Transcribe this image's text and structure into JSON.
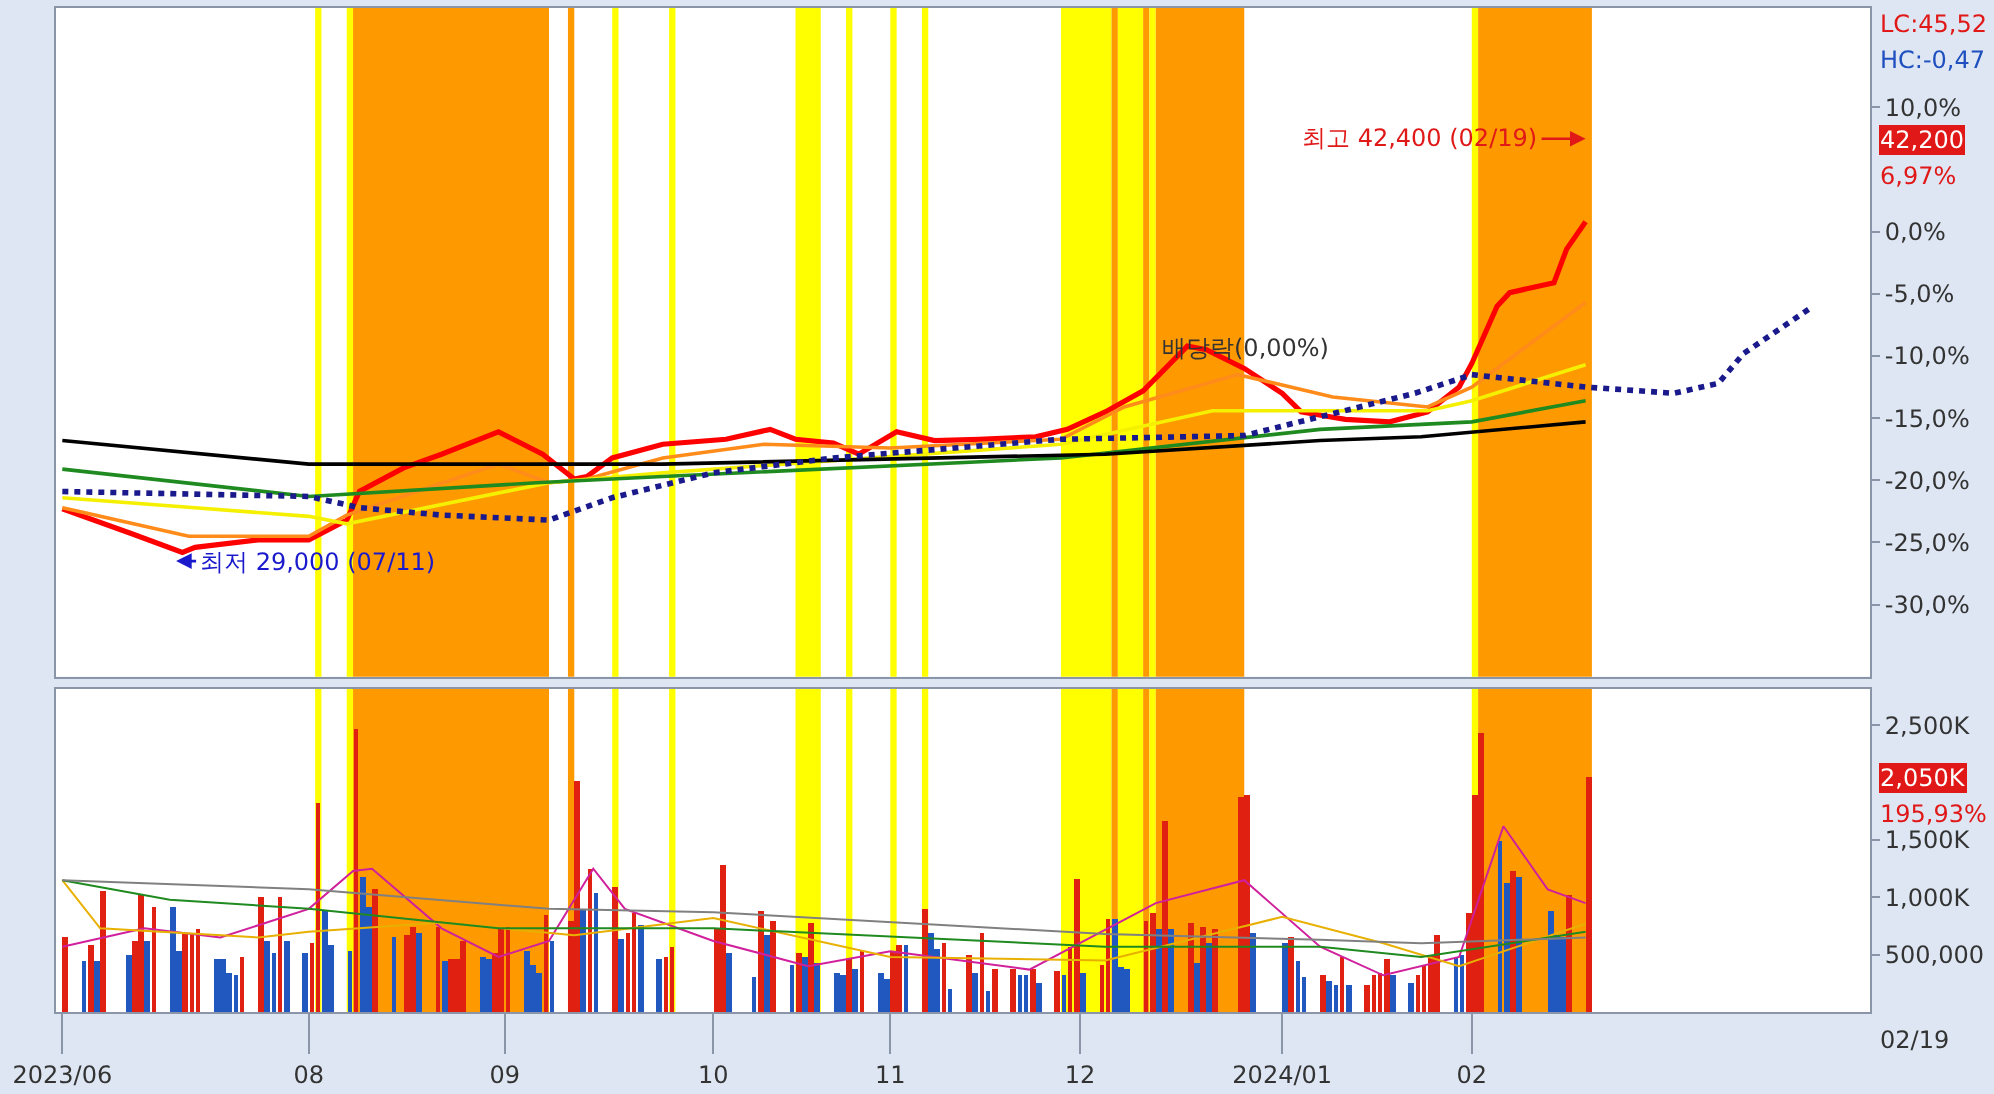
{
  "chart_data": [
    {
      "type": "line",
      "xlim": [
        "2023-06-22",
        "2024-04-04"
      ],
      "ylim": [
        -35.8,
        18.0
      ],
      "yticks": [
        {
          "value": 10,
          "label": "10,0%"
        },
        {
          "value": 0,
          "label": "0,0%"
        },
        {
          "value": -5,
          "label": "-5,0%"
        },
        {
          "value": -10,
          "label": "-10,0%"
        },
        {
          "value": -15,
          "label": "-15,0%"
        },
        {
          "value": -20,
          "label": "-20,0%"
        },
        {
          "value": -25,
          "label": "-25,0%"
        },
        {
          "value": -30,
          "label": "-30,0%"
        }
      ],
      "tick_labels": "y",
      "series": [
        {
          "color": "#ff0000",
          "x": [
            "2023-06-23",
            "2023-07-04",
            "2023-07-12",
            "2023-07-14",
            "2023-07-24",
            "2023-08-01",
            "2023-08-07",
            "2023-08-09",
            "2023-08-16",
            "2023-08-22",
            "2023-08-31",
            "2023-09-07",
            "2023-09-12",
            "2023-09-14",
            "2023-09-18",
            "2023-09-26",
            "2023-10-06",
            "2023-10-13",
            "2023-10-17",
            "2023-10-23",
            "2023-10-27",
            "2023-11-02",
            "2023-11-08",
            "2023-11-15",
            "2023-11-24",
            "2023-11-29",
            "2023-12-05",
            "2023-12-11",
            "2023-12-18",
            "2023-12-21",
            "2023-12-27",
            "2024-01-02",
            "2024-01-05",
            "2024-01-12",
            "2024-01-19",
            "2024-01-25",
            "2024-01-30",
            "2024-02-01",
            "2024-02-05",
            "2024-02-07",
            "2024-02-14",
            "2024-02-16",
            "2024-02-19"
          ],
          "values": [
            -22.3,
            -24.3,
            -25.8,
            -25.4,
            -24.8,
            -24.8,
            -23.2,
            -20.9,
            -19.0,
            -17.9,
            -16.1,
            -17.9,
            -19.9,
            -19.7,
            -18.2,
            -17.1,
            -16.7,
            -15.9,
            -16.7,
            -17.0,
            -17.9,
            -16.1,
            -16.8,
            -16.7,
            -16.5,
            -15.9,
            -14.5,
            -12.8,
            -9.2,
            -9.5,
            -11.0,
            -13.0,
            -14.5,
            -15.1,
            -15.3,
            -14.5,
            -12.5,
            -10.6,
            -6.0,
            -4.9,
            -4.1,
            -1.4,
            0.8
          ]
        },
        {
          "color": "#ff8c1a",
          "x": [
            "2023-06-23",
            "2023-07-13",
            "2023-08-01",
            "2023-08-07",
            "2023-08-31",
            "2023-09-08",
            "2023-09-14",
            "2023-09-26",
            "2023-10-12",
            "2023-11-01",
            "2023-11-28",
            "2023-12-08",
            "2023-12-26",
            "2024-01-10",
            "2024-01-25",
            "2024-02-01",
            "2024-02-19"
          ],
          "values": [
            -22.2,
            -24.5,
            -24.5,
            -22.8,
            -18.7,
            -20.2,
            -19.9,
            -18.2,
            -17.1,
            -17.4,
            -16.7,
            -14.1,
            -11.5,
            -13.3,
            -14.1,
            -12.5,
            -5.7
          ]
        },
        {
          "color": "#f5f000",
          "x": [
            "2023-06-23",
            "2023-08-01",
            "2023-08-07",
            "2023-09-08",
            "2023-09-26",
            "2023-11-28",
            "2023-12-22",
            "2024-01-08",
            "2024-01-25",
            "2024-02-01",
            "2024-02-19"
          ],
          "values": [
            -21.4,
            -22.9,
            -23.5,
            -20.2,
            -19.4,
            -17.1,
            -14.4,
            -14.4,
            -14.4,
            -13.6,
            -10.7
          ]
        },
        {
          "color": "#1f8a1f",
          "x": [
            "2023-06-23",
            "2023-08-01",
            "2023-09-06",
            "2023-09-26",
            "2023-11-28",
            "2024-01-08",
            "2024-02-01",
            "2024-02-19"
          ],
          "values": [
            -19.1,
            -21.3,
            -20.2,
            -19.7,
            -18.2,
            -15.9,
            -15.3,
            -13.6
          ]
        },
        {
          "color": "#000000",
          "x": [
            "2023-06-23",
            "2023-08-01",
            "2023-09-26",
            "2023-12-05",
            "2024-01-08",
            "2024-01-24",
            "2024-02-19"
          ],
          "values": [
            -16.8,
            -18.7,
            -18.7,
            -17.9,
            -16.8,
            -16.5,
            -15.3
          ]
        },
        {
          "color": "#1a1a8c",
          "line_style": "dotted",
          "x": [
            "2023-06-23",
            "2023-08-01",
            "2023-08-09",
            "2023-08-22",
            "2023-09-08",
            "2023-09-18",
            "2023-10-04",
            "2023-10-23",
            "2023-11-28",
            "2023-12-27",
            "2024-01-23",
            "2024-02-01",
            "2024-02-19",
            "2024-03-04",
            "2024-03-11",
            "2024-03-15",
            "2024-03-26"
          ],
          "values": [
            -20.9,
            -21.3,
            -22.2,
            -22.8,
            -23.2,
            -21.4,
            -19.4,
            -18.2,
            -16.7,
            -16.4,
            -13.0,
            -11.5,
            -12.5,
            -13.0,
            -12.2,
            -9.8,
            -6.0
          ]
        }
      ],
      "bands": [
        {
          "axis": "x",
          "from": "2023-08-02",
          "to": "2023-08-03",
          "color": "#ffff00"
        },
        {
          "axis": "x",
          "from": "2023-08-07",
          "to": "2023-08-08",
          "color": "#ffff00"
        },
        {
          "axis": "x",
          "from": "2023-08-08",
          "to": "2023-09-08",
          "color": "#ff9900"
        },
        {
          "axis": "x",
          "from": "2023-09-11",
          "to": "2023-09-12",
          "color": "#ff9900"
        },
        {
          "axis": "x",
          "from": "2023-09-18",
          "to": "2023-09-19",
          "color": "#ffff00"
        },
        {
          "axis": "x",
          "from": "2023-09-27",
          "to": "2023-09-28",
          "color": "#ffff00"
        },
        {
          "axis": "x",
          "from": "2023-10-17",
          "to": "2023-10-21",
          "color": "#ffff00"
        },
        {
          "axis": "x",
          "from": "2023-10-25",
          "to": "2023-10-26",
          "color": "#ffff00"
        },
        {
          "axis": "x",
          "from": "2023-11-01",
          "to": "2023-11-02",
          "color": "#ffff00"
        },
        {
          "axis": "x",
          "from": "2023-11-06",
          "to": "2023-11-07",
          "color": "#ffff00"
        },
        {
          "axis": "x",
          "from": "2023-11-28",
          "to": "2023-12-06",
          "color": "#ffff00"
        },
        {
          "axis": "x",
          "from": "2023-12-06",
          "to": "2023-12-07",
          "color": "#ff9900"
        },
        {
          "axis": "x",
          "from": "2023-12-07",
          "to": "2023-12-11",
          "color": "#ffff00"
        },
        {
          "axis": "x",
          "from": "2023-12-11",
          "to": "2023-12-12",
          "color": "#ff9900"
        },
        {
          "axis": "x",
          "from": "2023-12-12",
          "to": "2023-12-13",
          "color": "#ffff00"
        },
        {
          "axis": "x",
          "from": "2023-12-13",
          "to": "2023-12-27",
          "color": "#ff9900"
        },
        {
          "axis": "x",
          "from": "2024-02-01",
          "to": "2024-02-02",
          "color": "#ffff00"
        },
        {
          "axis": "x",
          "from": "2024-02-02",
          "to": "2024-02-20",
          "color": "#ff9900"
        }
      ],
      "annotations": [
        {
          "text": "최저 29,000 (07/11)",
          "x": "2023-07-11",
          "y": -26.5
        },
        {
          "text": "최고 42,400 (02/19)",
          "x": "2024-02-19",
          "y": 7.48
        },
        {
          "text": "배당락(0,00%)",
          "x": "2023-12-27",
          "y": -9.3
        },
        "LC:45,52",
        "HC:-0,47",
        "42,200",
        "6,97%"
      ]
    },
    {
      "type": "bar",
      "xlim": [
        "2023-06-22",
        "2024-04-04"
      ],
      "ylim": [
        0,
        2820000
      ],
      "xticks": [
        {
          "value": "2023-06-23",
          "label": "2023/06"
        },
        {
          "value": "2023-08-01",
          "label": "08"
        },
        {
          "value": "2023-09-01",
          "label": "09"
        },
        {
          "value": "2023-10-04",
          "label": "10"
        },
        {
          "value": "2023-11-01",
          "label": "11"
        },
        {
          "value": "2023-12-01",
          "label": "12"
        },
        {
          "value": "2024-01-02",
          "label": "2024/01"
        },
        {
          "value": "2024-02-01",
          "label": "02"
        }
      ],
      "yticks": [
        {
          "value": 500000,
          "label": "500,000"
        },
        {
          "value": 1000000,
          "label": "1,000K"
        },
        {
          "value": 1500000,
          "label": "1,500K"
        },
        {
          "value": 2500000,
          "label": "2,500K"
        }
      ],
      "x": [
        "2023-06-23",
        "2023-06-26",
        "2023-06-27",
        "2023-06-28",
        "2023-06-29",
        "2023-07-03",
        "2023-07-04",
        "2023-07-05",
        "2023-07-06",
        "2023-07-07",
        "2023-07-10",
        "2023-07-11",
        "2023-07-12",
        "2023-07-13",
        "2023-07-14",
        "2023-07-17",
        "2023-07-18",
        "2023-07-19",
        "2023-07-20",
        "2023-07-21",
        "2023-07-24",
        "2023-07-25",
        "2023-07-26",
        "2023-07-27",
        "2023-07-28",
        "2023-07-31",
        "2023-08-01",
        "2023-08-02",
        "2023-08-03",
        "2023-08-04",
        "2023-08-07",
        "2023-08-08",
        "2023-08-09",
        "2023-08-10",
        "2023-08-11",
        "2023-08-14",
        "2023-08-16",
        "2023-08-17",
        "2023-08-18",
        "2023-08-21",
        "2023-08-22",
        "2023-08-23",
        "2023-08-24",
        "2023-08-25",
        "2023-08-28",
        "2023-08-29",
        "2023-08-30",
        "2023-08-31",
        "2023-09-01",
        "2023-09-04",
        "2023-09-05",
        "2023-09-06",
        "2023-09-07",
        "2023-09-08",
        "2023-09-11",
        "2023-09-12",
        "2023-09-13",
        "2023-09-14",
        "2023-09-15",
        "2023-09-18",
        "2023-09-19",
        "2023-09-20",
        "2023-09-21",
        "2023-09-22",
        "2023-09-25",
        "2023-09-26",
        "2023-09-27",
        "2023-10-04",
        "2023-10-05",
        "2023-10-06",
        "2023-10-10",
        "2023-10-11",
        "2023-10-12",
        "2023-10-13",
        "2023-10-16",
        "2023-10-17",
        "2023-10-18",
        "2023-10-19",
        "2023-10-20",
        "2023-10-23",
        "2023-10-24",
        "2023-10-25",
        "2023-10-26",
        "2023-10-27",
        "2023-10-30",
        "2023-10-31",
        "2023-11-01",
        "2023-11-02",
        "2023-11-03",
        "2023-11-06",
        "2023-11-07",
        "2023-11-08",
        "2023-11-09",
        "2023-11-10",
        "2023-11-13",
        "2023-11-14",
        "2023-11-15",
        "2023-11-16",
        "2023-11-17",
        "2023-11-20",
        "2023-11-21",
        "2023-11-22",
        "2023-11-23",
        "2023-11-24",
        "2023-11-27",
        "2023-11-28",
        "2023-11-29",
        "2023-11-30",
        "2023-12-01",
        "2023-12-04",
        "2023-12-05",
        "2023-12-06",
        "2023-12-07",
        "2023-12-08",
        "2023-12-11",
        "2023-12-12",
        "2023-12-13",
        "2023-12-14",
        "2023-12-15",
        "2023-12-18",
        "2023-12-19",
        "2023-12-20",
        "2023-12-21",
        "2023-12-22",
        "2023-12-26",
        "2023-12-27",
        "2023-12-28",
        "2024-01-02",
        "2024-01-03",
        "2024-01-04",
        "2024-01-05",
        "2024-01-08",
        "2024-01-09",
        "2024-01-10",
        "2024-01-11",
        "2024-01-12",
        "2024-01-15",
        "2024-01-16",
        "2024-01-17",
        "2024-01-18",
        "2024-01-19",
        "2024-01-22",
        "2024-01-23",
        "2024-01-24",
        "2024-01-25",
        "2024-01-26",
        "2024-01-29",
        "2024-01-30",
        "2024-01-31",
        "2024-02-01",
        "2024-02-02",
        "2024-02-05",
        "2024-02-06",
        "2024-02-07",
        "2024-02-08",
        "2024-02-13",
        "2024-02-14",
        "2024-02-15",
        "2024-02-16",
        "2024-02-19"
      ],
      "series": [
        {
          "values": [
            650000,
            440000,
            580000,
            440000,
            1050000,
            500000,
            620000,
            1020000,
            630000,
            920000,
            920000,
            540000,
            690000,
            700000,
            720000,
            470000,
            460000,
            350000,
            330000,
            480000,
            1000000,
            620000,
            520000,
            1010000,
            620000,
            520000,
            610000,
            1830000,
            880000,
            580000,
            530000,
            2470000,
            1180000,
            920000,
            1070000,
            650000,
            670000,
            750000,
            690000,
            750000,
            440000,
            460000,
            470000,
            620000,
            480000,
            470000,
            510000,
            720000,
            740000,
            540000,
            420000,
            350000,
            850000,
            620000,
            790000,
            2020000,
            900000,
            1250000,
            1040000,
            1100000,
            640000,
            700000,
            870000,
            770000,
            470000,
            480000,
            570000,
            730000,
            1280000,
            510000,
            300000,
            880000,
            680000,
            800000,
            420000,
            510000,
            480000,
            780000,
            430000,
            350000,
            320000,
            470000,
            380000,
            530000,
            350000,
            290000,
            530000,
            580000,
            580000,
            900000,
            700000,
            550000,
            610000,
            200000,
            500000,
            340000,
            700000,
            180000,
            370000,
            380000,
            320000,
            330000,
            380000,
            250000,
            360000,
            330000,
            570000,
            1170000,
            350000,
            420000,
            820000,
            820000,
            400000,
            380000,
            800000,
            870000,
            720000,
            1670000,
            720000,
            780000,
            430000,
            750000,
            600000,
            730000,
            1870000,
            1900000,
            700000,
            600000,
            650000,
            450000,
            300000,
            330000,
            280000,
            230000,
            480000,
            230000,
            230000,
            320000,
            350000,
            470000,
            320000,
            250000,
            330000,
            420000,
            500000,
            680000,
            480000,
            500000,
            870000,
            1900000,
            2430000,
            1500000,
            1130000,
            1230000,
            1180000,
            880000,
            670000,
            650000,
            1020000,
            2050000
          ],
          "colors": [
            "#e02010",
            "#2058c0",
            "#e02010",
            "#2058c0",
            "#e02010",
            "#2058c0",
            "#e02010",
            "#e02010",
            "#2058c0",
            "#e02010",
            "#2058c0",
            "#2058c0",
            "#e02010",
            "#e02010",
            "#e02010",
            "#2058c0",
            "#2058c0",
            "#2058c0",
            "#2058c0",
            "#e02010",
            "#e02010",
            "#2058c0",
            "#2058c0",
            "#e02010",
            "#2058c0",
            "#2058c0",
            "#e02010",
            "#e02010",
            "#2058c0",
            "#2058c0",
            "#2058c0",
            "#e02010",
            "#2058c0",
            "#2058c0",
            "#e02010",
            "#2058c0",
            "#e02010",
            "#e02010",
            "#2058c0",
            "#e02010",
            "#2058c0",
            "#e02010",
            "#e02010",
            "#e02010",
            "#2058c0",
            "#2058c0",
            "#e02010",
            "#e02010",
            "#e02010",
            "#2058c0",
            "#2058c0",
            "#2058c0",
            "#e02010",
            "#2058c0",
            "#e02010",
            "#e02010",
            "#2058c0",
            "#e02010",
            "#2058c0",
            "#e02010",
            "#2058c0",
            "#e02010",
            "#e02010",
            "#2058c0",
            "#2058c0",
            "#e02010",
            "#e02010",
            "#e02010",
            "#e02010",
            "#2058c0",
            "#2058c0",
            "#e02010",
            "#2058c0",
            "#e02010",
            "#2058c0",
            "#e02010",
            "#2058c0",
            "#e02010",
            "#2058c0",
            "#2058c0",
            "#2058c0",
            "#e02010",
            "#2058c0",
            "#e02010",
            "#2058c0",
            "#2058c0",
            "#e02010",
            "#e02010",
            "#2058c0",
            "#e02010",
            "#2058c0",
            "#2058c0",
            "#e02010",
            "#2058c0",
            "#e02010",
            "#2058c0",
            "#e02010",
            "#2058c0",
            "#e02010",
            "#e02010",
            "#2058c0",
            "#2058c0",
            "#e02010",
            "#2058c0",
            "#e02010",
            "#2058c0",
            "#e02010",
            "#e02010",
            "#2058c0",
            "#e02010",
            "#e02010",
            "#2058c0",
            "#2058c0",
            "#2058c0",
            "#e02010",
            "#e02010",
            "#2058c0",
            "#e02010",
            "#2058c0",
            "#e02010",
            "#2058c0",
            "#e02010",
            "#2058c0",
            "#e02010",
            "#e02010",
            "#e02010",
            "#2058c0",
            "#2058c0",
            "#e02010",
            "#2058c0",
            "#2058c0",
            "#e02010",
            "#2058c0",
            "#2058c0",
            "#e02010",
            "#2058c0",
            "#e02010",
            "#e02010",
            "#e02010",
            "#e02010",
            "#2058c0",
            "#2058c0",
            "#e02010",
            "#e02010",
            "#e02010",
            "#e02010",
            "#2058c0",
            "#2058c0",
            "#e02010",
            "#e02010",
            "#e02010",
            "#2058c0",
            "#2058c0",
            "#e02010",
            "#2058c0",
            "#2058c0",
            "#2058c0",
            "#2058c0",
            "#e02010",
            "#e02010"
          ]
        },
        {
          "type": "line",
          "color": "#d0209c",
          "x": [
            "2023-06-23",
            "2023-07-06",
            "2023-07-18",
            "2023-08-01",
            "2023-08-08",
            "2023-08-11",
            "2023-08-22",
            "2023-08-31",
            "2023-09-08",
            "2023-09-15",
            "2023-09-20",
            "2023-10-04",
            "2023-10-19",
            "2023-11-01",
            "2023-11-23",
            "2023-12-13",
            "2023-12-27",
            "2024-01-08",
            "2024-01-18",
            "2024-01-30",
            "2024-02-06",
            "2024-02-13",
            "2024-02-19"
          ],
          "values": [
            570000,
            730000,
            650000,
            900000,
            1230000,
            1250000,
            730000,
            480000,
            620000,
            1250000,
            900000,
            620000,
            400000,
            530000,
            370000,
            950000,
            1150000,
            570000,
            320000,
            480000,
            1620000,
            1070000,
            950000
          ]
        },
        {
          "type": "line",
          "color": "#e8b000",
          "x": [
            "2023-06-23",
            "2023-06-29",
            "2023-07-24",
            "2023-08-01",
            "2023-08-22",
            "2023-09-12",
            "2023-10-04",
            "2023-11-01",
            "2023-12-05",
            "2024-01-02",
            "2024-01-18",
            "2024-01-30",
            "2024-02-19"
          ],
          "values": [
            1150000,
            730000,
            650000,
            700000,
            780000,
            670000,
            820000,
            480000,
            450000,
            830000,
            600000,
            400000,
            770000
          ]
        },
        {
          "type": "line",
          "color": "#1f8a1f",
          "x": [
            "2023-06-23",
            "2023-07-10",
            "2023-08-01",
            "2023-08-31",
            "2023-10-04",
            "2023-12-05",
            "2024-01-08",
            "2024-01-24",
            "2024-02-19"
          ],
          "values": [
            1150000,
            980000,
            900000,
            730000,
            730000,
            570000,
            570000,
            480000,
            700000
          ]
        },
        {
          "type": "line",
          "color": "#808080",
          "x": [
            "2023-06-23",
            "2023-08-01",
            "2023-09-08",
            "2023-10-04",
            "2023-12-05",
            "2024-01-08",
            "2024-01-24",
            "2024-02-19"
          ],
          "values": [
            1150000,
            1070000,
            900000,
            870000,
            680000,
            630000,
            600000,
            650000
          ]
        }
      ],
      "bands": [
        {
          "axis": "x",
          "from": "2023-08-02",
          "to": "2023-08-03",
          "color": "#ffff00"
        },
        {
          "axis": "x",
          "from": "2023-08-07",
          "to": "2023-08-08",
          "color": "#ffff00"
        },
        {
          "axis": "x",
          "from": "2023-08-08",
          "to": "2023-09-08",
          "color": "#ff9900"
        },
        {
          "axis": "x",
          "from": "2023-09-11",
          "to": "2023-09-12",
          "color": "#ff9900"
        },
        {
          "axis": "x",
          "from": "2023-09-18",
          "to": "2023-09-19",
          "color": "#ffff00"
        },
        {
          "axis": "x",
          "from": "2023-09-27",
          "to": "2023-09-28",
          "color": "#ffff00"
        },
        {
          "axis": "x",
          "from": "2023-10-17",
          "to": "2023-10-21",
          "color": "#ffff00"
        },
        {
          "axis": "x",
          "from": "2023-10-25",
          "to": "2023-10-26",
          "color": "#ffff00"
        },
        {
          "axis": "x",
          "from": "2023-11-01",
          "to": "2023-11-02",
          "color": "#ffff00"
        },
        {
          "axis": "x",
          "from": "2023-11-06",
          "to": "2023-11-07",
          "color": "#ffff00"
        },
        {
          "axis": "x",
          "from": "2023-11-28",
          "to": "2023-12-06",
          "color": "#ffff00"
        },
        {
          "axis": "x",
          "from": "2023-12-06",
          "to": "2023-12-07",
          "color": "#ff9900"
        },
        {
          "axis": "x",
          "from": "2023-12-07",
          "to": "2023-12-11",
          "color": "#ffff00"
        },
        {
          "axis": "x",
          "from": "2023-12-11",
          "to": "2023-12-12",
          "color": "#ff9900"
        },
        {
          "axis": "x",
          "from": "2023-12-12",
          "to": "2023-12-13",
          "color": "#ffff00"
        },
        {
          "axis": "x",
          "from": "2023-12-13",
          "to": "2023-12-27",
          "color": "#ff9900"
        },
        {
          "axis": "x",
          "from": "2024-02-01",
          "to": "2024-02-02",
          "color": "#ffff00"
        },
        {
          "axis": "x",
          "from": "2024-02-02",
          "to": "2024-02-20",
          "color": "#ff9900"
        }
      ],
      "annotations": [
        "2,050K",
        "195,93%",
        "02/19"
      ]
    }
  ]
}
